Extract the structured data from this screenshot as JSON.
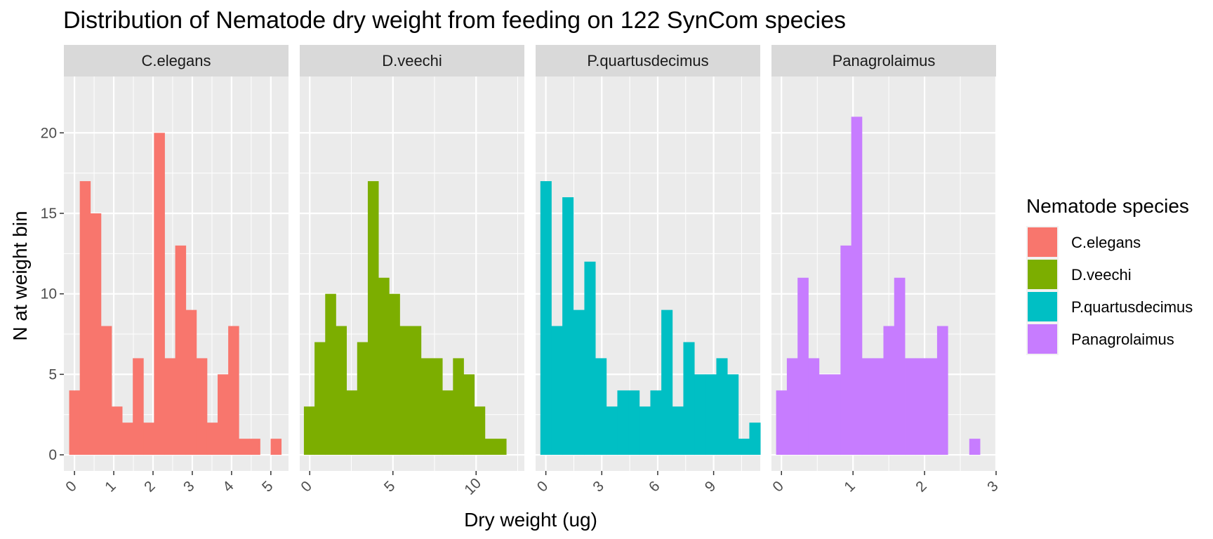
{
  "chart_data": {
    "type": "bar",
    "subtype": "faceted-histogram",
    "title": "Distribution of Nematode dry weight from feeding on 122 SynCom species",
    "xlabel": "Dry weight (ug)",
    "ylabel": "N at weight bin",
    "ylim": [
      -1,
      23.5
    ],
    "y_ticks": [
      0,
      5,
      10,
      15,
      20
    ],
    "grid": true,
    "legend": {
      "title": "Nematode species",
      "placement": "right"
    },
    "facets": [
      {
        "name": "C.elegans",
        "color": "#F8766D",
        "xlim": [
          -0.27,
          5.45
        ],
        "x_ticks": [
          0,
          1,
          2,
          3,
          4,
          5
        ],
        "x_tick_labels": [
          "0",
          "1",
          "2",
          "3",
          "4",
          "5"
        ],
        "bin_width": 0.27,
        "bin_start": -0.135,
        "counts": [
          4,
          17,
          15,
          8,
          3,
          2,
          6,
          2,
          20,
          6,
          13,
          9,
          6,
          2,
          5,
          8,
          1,
          1,
          0,
          1
        ]
      },
      {
        "name": "D.veechi",
        "color": "#7CAE00",
        "xlim": [
          -0.6,
          12.9
        ],
        "x_ticks": [
          0,
          5,
          10
        ],
        "x_tick_labels": [
          "0",
          "5",
          "10"
        ],
        "bin_width": 0.64,
        "bin_start": -0.35,
        "counts": [
          3,
          7,
          10,
          8,
          4,
          7,
          17,
          11,
          10,
          8,
          8,
          6,
          6,
          4,
          6,
          5,
          3,
          1,
          1
        ]
      },
      {
        "name": "P.quartusdecimus",
        "color": "#00BFC4",
        "xlim": [
          -0.55,
          11.5
        ],
        "x_ticks": [
          0,
          3,
          6,
          9
        ],
        "x_tick_labels": [
          "0",
          "3",
          "6",
          "9"
        ],
        "bin_width": 0.59,
        "bin_start": -0.295,
        "counts": [
          17,
          8,
          16,
          9,
          12,
          6,
          3,
          4,
          4,
          3,
          4,
          9,
          3,
          7,
          5,
          5,
          6,
          5,
          1,
          2
        ]
      },
      {
        "name": "Panagrolaimus",
        "color": "#C77CFF",
        "xlim": [
          -0.14,
          3.0
        ],
        "x_ticks": [
          0,
          1,
          2,
          3
        ],
        "x_tick_labels": [
          "0",
          "1",
          "2",
          "3"
        ],
        "bin_width": 0.15,
        "bin_start": -0.075,
        "counts": [
          4,
          6,
          11,
          6,
          5,
          5,
          13,
          21,
          6,
          6,
          8,
          11,
          6,
          6,
          6,
          8,
          0,
          0,
          1
        ]
      }
    ]
  }
}
